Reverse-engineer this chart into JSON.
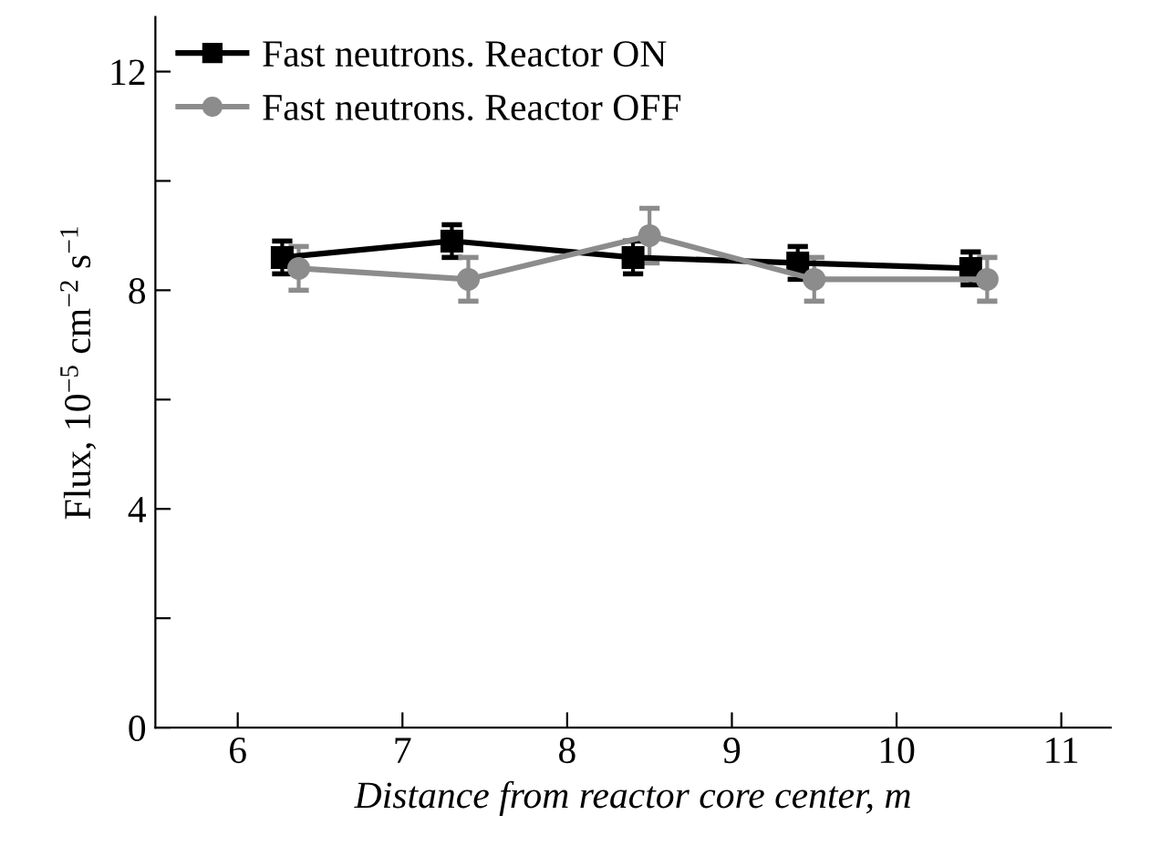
{
  "chart_data": {
    "type": "line",
    "xlabel": "Distance from reactor core center, m",
    "ylabel": "Flux, 10$^{−5}$ cm$^{−2}$ s$^{−1}$",
    "series": [
      {
        "name": "Fast neutrons. Reactor ON",
        "color": "#000000",
        "marker": "square",
        "x": [
          6.27,
          7.3,
          8.4,
          9.4,
          10.45
        ],
        "values": [
          8.6,
          8.9,
          8.6,
          8.5,
          8.4
        ],
        "errors": [
          0.3,
          0.3,
          0.3,
          0.3,
          0.3
        ]
      },
      {
        "name": "Fast neutrons. Reactor OFF",
        "color": "#8c8c8c",
        "marker": "circle",
        "x": [
          6.37,
          7.4,
          8.5,
          9.5,
          10.55
        ],
        "values": [
          8.4,
          8.2,
          9.0,
          8.2,
          8.2
        ],
        "errors": [
          0.4,
          0.4,
          0.5,
          0.4,
          0.4
        ]
      }
    ],
    "xlim": [
      5.5,
      11.3
    ],
    "xticks": [
      6,
      7,
      8,
      9,
      10,
      11
    ],
    "ylim": [
      0,
      13
    ],
    "yticks": [
      0,
      {
        "value": 2,
        "label": null
      },
      4,
      {
        "value": 6,
        "label": null
      },
      8,
      {
        "value": 10,
        "label": null
      },
      12
    ],
    "grid": false,
    "legend": "top left",
    "line_style": "solid"
  }
}
